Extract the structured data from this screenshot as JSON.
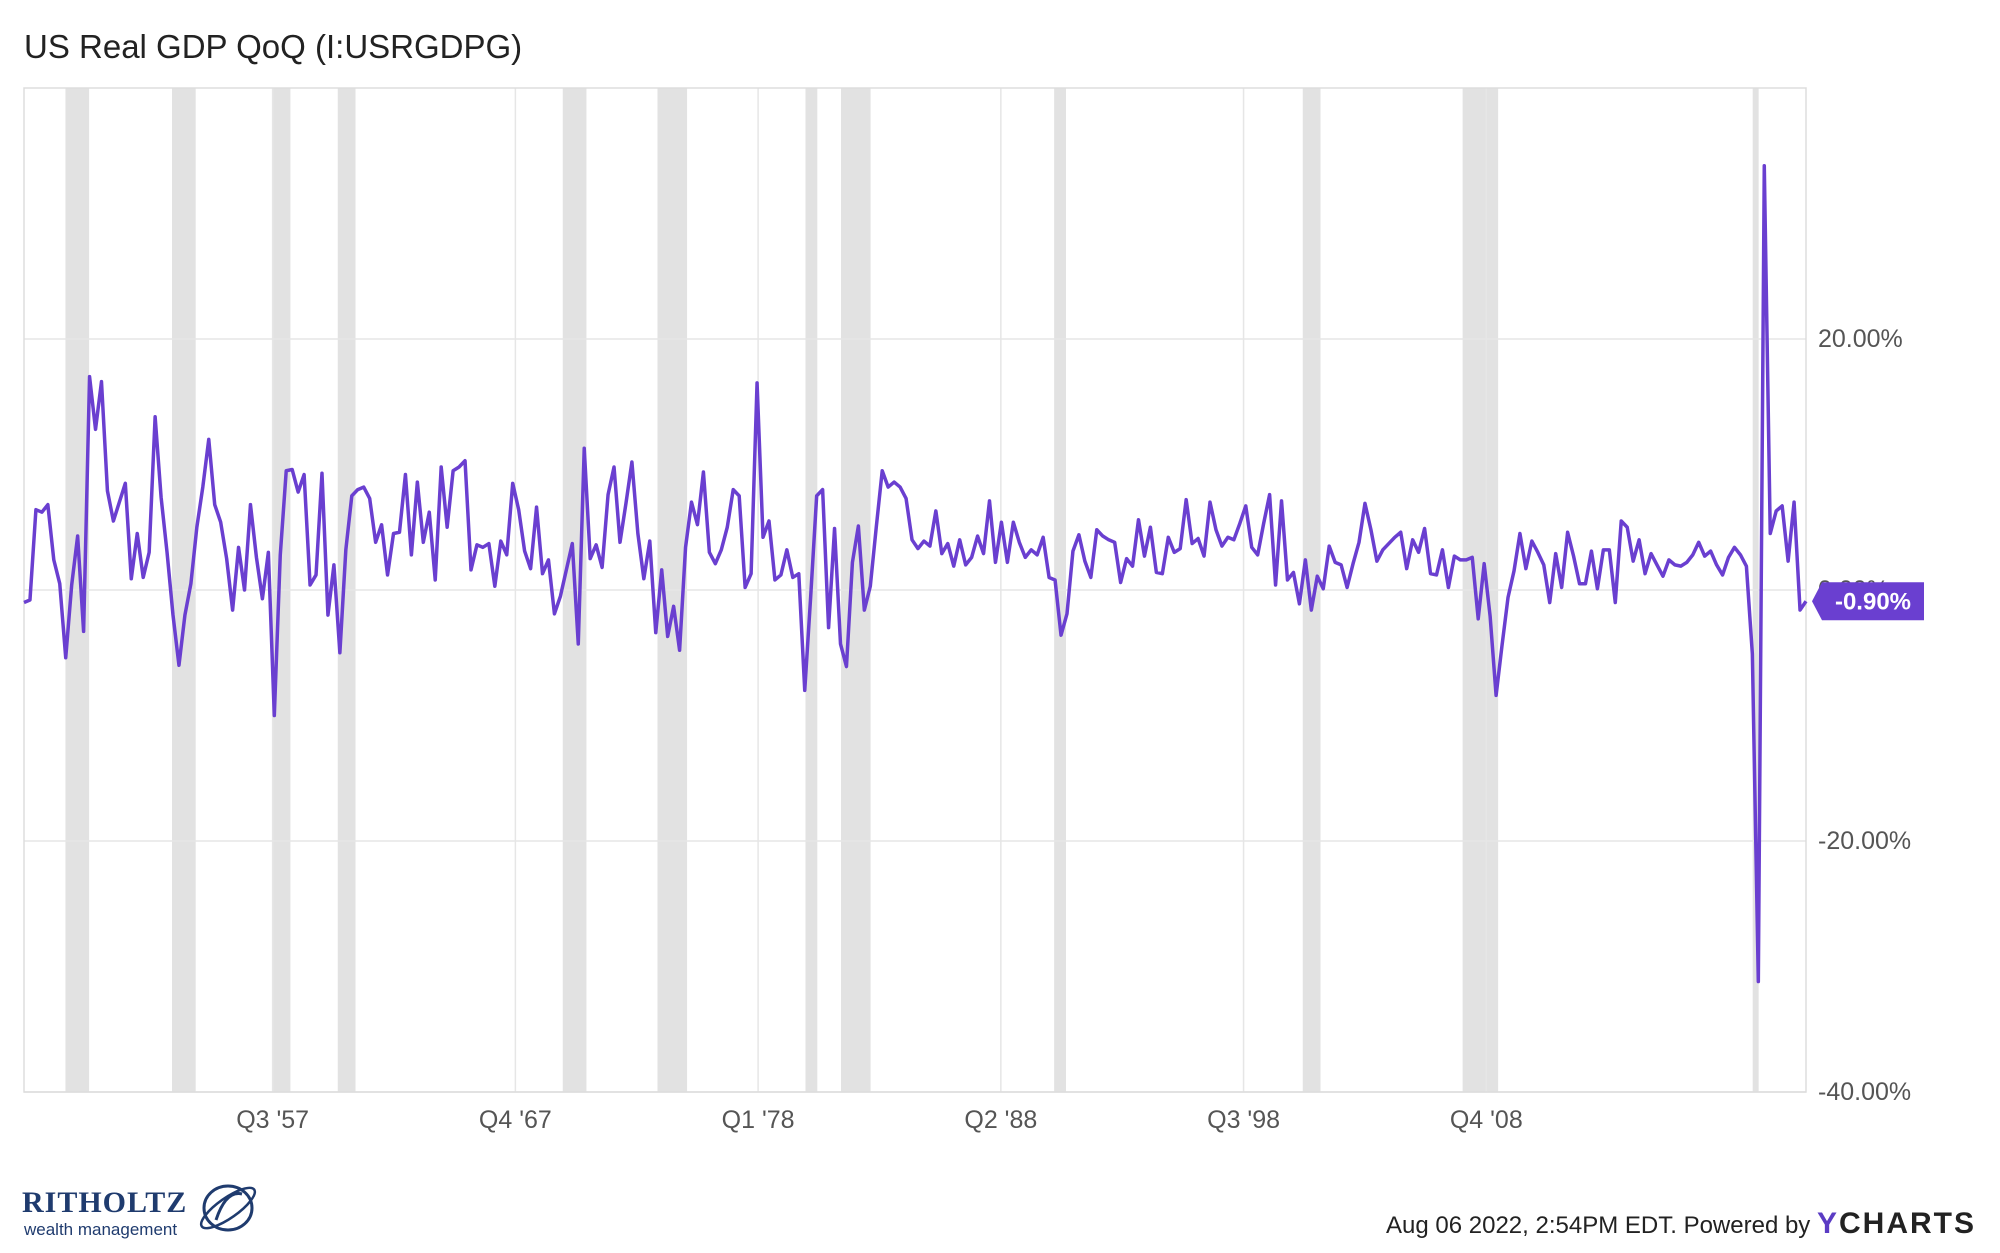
{
  "title": "US Real GDP QoQ (I:USRGDPG)",
  "footer": {
    "timestamp": "Aug 06 2022, 2:54PM EDT.",
    "powered_by": "Powered by",
    "brand_y": "Y",
    "brand_rest": "CHARTS"
  },
  "logo": {
    "name": "RITHOLTZ",
    "sub": "wealth management"
  },
  "colors": {
    "line": "#6a3fd0",
    "recession": "#e2e2e2",
    "grid": "#e6e6e6",
    "label_bg": "#6a3fd0"
  },
  "chart_data": {
    "type": "line",
    "x_start": "Q1 1947",
    "x_end": "Q2 2022",
    "frequency": "quarterly",
    "ylim": [
      -40,
      40
    ],
    "y_ticks": [
      20,
      0,
      -20,
      -40
    ],
    "y_tick_labels": [
      "20.00%",
      "0.00%",
      "-20.00%",
      "-40.00%"
    ],
    "x_tick_labels": [
      "Q3 '57",
      "Q4 '67",
      "Q1 '78",
      "Q2 '88",
      "Q3 '98",
      "Q4 '08"
    ],
    "last_value_label": "-0.90%",
    "grid": true,
    "recessions": [
      [
        "Q4 1948",
        "Q4 1949"
      ],
      [
        "Q2 1953",
        "Q2 1954"
      ],
      [
        "Q3 1957",
        "Q2 1958"
      ],
      [
        "Q2 1960",
        "Q1 1961"
      ],
      [
        "Q4 1969",
        "Q4 1970"
      ],
      [
        "Q4 1973",
        "Q1 1975"
      ],
      [
        "Q1 1980",
        "Q3 1980"
      ],
      [
        "Q3 1981",
        "Q4 1982"
      ],
      [
        "Q3 1990",
        "Q1 1991"
      ],
      [
        "Q1 2001",
        "Q4 2001"
      ],
      [
        "Q4 2007",
        "Q2 2009"
      ],
      [
        "Q1 2020",
        "Q2 2020"
      ]
    ],
    "series": [
      {
        "values": [
          -1.0,
          -0.8,
          6.4,
          6.2,
          6.8,
          2.4,
          0.5,
          -5.4,
          0.4,
          4.3,
          -3.3,
          17.0,
          12.8,
          16.6,
          7.9,
          5.5,
          7.0,
          8.5,
          0.9,
          4.5,
          1.0,
          3.0,
          13.8,
          7.4,
          3.0,
          -2.0,
          -6.0,
          -2.0,
          0.5,
          5.0,
          8.2,
          12.0,
          6.8,
          5.4,
          2.5,
          -1.6,
          3.4,
          0.0,
          6.8,
          2.6,
          -0.7,
          3.0,
          -10.0,
          2.8,
          9.5,
          9.6,
          7.8,
          9.2,
          0.4,
          1.2,
          9.3,
          -2.0,
          2.0,
          -5.0,
          3.2,
          7.5,
          8.0,
          8.2,
          7.3,
          3.8,
          5.2,
          1.2,
          4.5,
          4.6,
          9.2,
          2.8,
          8.6,
          3.8,
          6.2,
          0.8,
          9.8,
          5.0,
          9.5,
          9.8,
          10.3,
          1.6,
          3.6,
          3.4,
          3.7,
          0.3,
          3.9,
          2.8,
          8.5,
          6.4,
          3.1,
          1.7,
          6.6,
          1.3,
          2.4,
          -1.9,
          -0.5,
          1.6,
          3.7,
          -4.3,
          11.3,
          2.5,
          3.6,
          1.8,
          7.6,
          9.8,
          3.8,
          6.9,
          10.2,
          4.5,
          0.9,
          3.9,
          -3.4,
          1.6,
          -3.7,
          -1.3,
          -4.8,
          3.4,
          7.0,
          5.2,
          9.4,
          3.0,
          2.1,
          3.2,
          5.0,
          8.0,
          7.5,
          0.2,
          1.3,
          16.5,
          4.2,
          5.5,
          0.8,
          1.2,
          3.2,
          1.0,
          1.3,
          -8.0,
          -0.5,
          7.5,
          8.0,
          -3.0,
          4.9,
          -4.3,
          -6.1,
          2.2,
          5.1,
          -1.6,
          0.3,
          5.0,
          9.5,
          8.2,
          8.6,
          8.2,
          7.3,
          4.0,
          3.3,
          3.9,
          3.5,
          6.3,
          2.9,
          3.7,
          1.9,
          4.0,
          2.0,
          2.6,
          4.3,
          2.9,
          7.1,
          2.2,
          5.4,
          2.2,
          5.4,
          3.8,
          2.6,
          3.2,
          2.8,
          4.2,
          1.0,
          0.8,
          -3.6,
          -1.9,
          3.1,
          4.4,
          2.3,
          1.0,
          4.8,
          4.3,
          4.0,
          3.8,
          0.6,
          2.5,
          1.9,
          5.6,
          2.7,
          5.0,
          1.4,
          1.3,
          4.2,
          3.0,
          3.3,
          7.2,
          3.7,
          4.1,
          2.7,
          7.0,
          4.8,
          3.5,
          4.2,
          4.0,
          5.3,
          6.7,
          3.4,
          2.8,
          5.3,
          7.6,
          0.4,
          7.1,
          0.8,
          1.4,
          -1.1,
          2.4,
          -1.6,
          1.1,
          0.1,
          3.5,
          2.2,
          2.0,
          0.2,
          2.1,
          3.8,
          6.9,
          4.8,
          2.3,
          3.2,
          3.7,
          4.2,
          4.6,
          1.7,
          4.0,
          3.0,
          4.9,
          1.3,
          1.2,
          3.2,
          0.2,
          2.7,
          2.4,
          2.4,
          2.6,
          -2.3,
          2.1,
          -2.1,
          -8.4,
          -4.4,
          -0.6,
          1.5,
          4.5,
          1.7,
          3.9,
          3.0,
          2.0,
          -1.0,
          2.9,
          0.2,
          4.6,
          2.7,
          0.5,
          0.5,
          3.1,
          0.1,
          3.2,
          3.2,
          -1.0,
          5.5,
          5.0,
          2.3,
          4.0,
          1.3,
          2.9,
          2.0,
          1.1,
          2.4,
          2.0,
          1.9,
          2.2,
          2.8,
          3.8,
          2.7,
          3.1,
          2.0,
          1.2,
          2.6,
          3.4,
          2.8,
          1.9,
          -5.1,
          -31.2,
          33.8,
          4.5,
          6.3,
          6.7,
          2.3,
          7.0,
          -1.6,
          -0.9
        ]
      }
    ]
  }
}
